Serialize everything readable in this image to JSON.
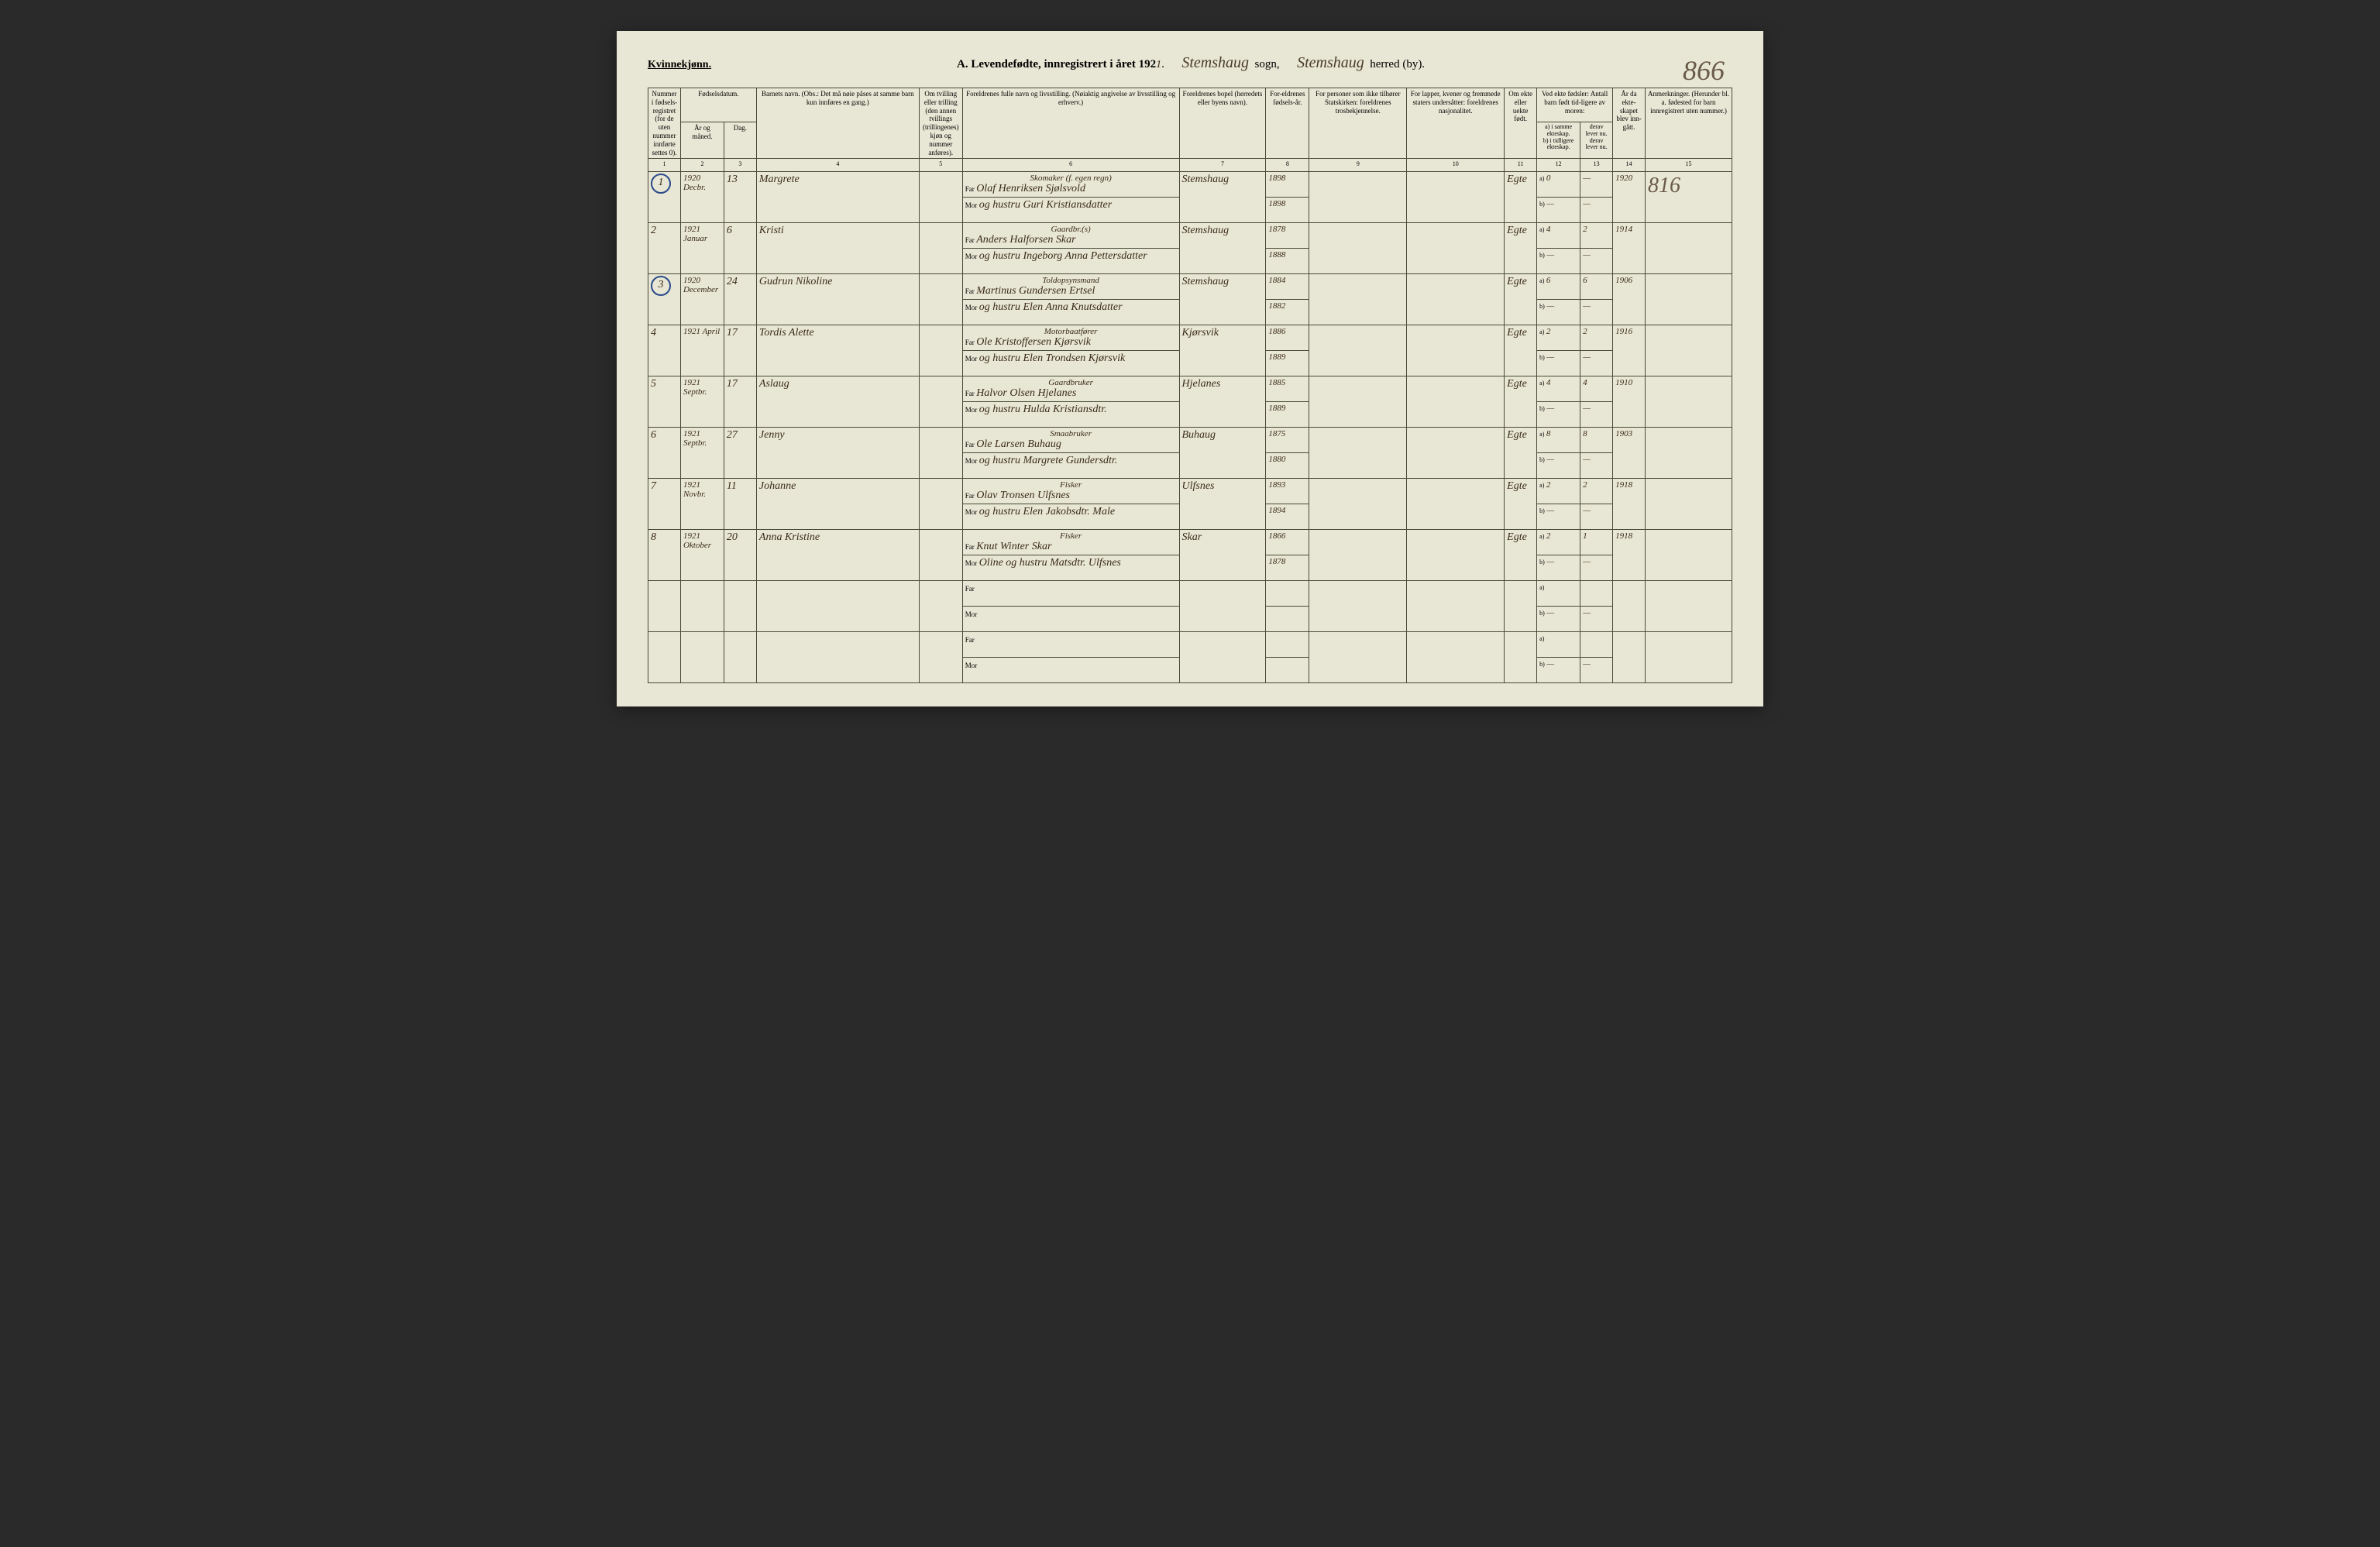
{
  "header": {
    "gender": "Kvinnekjønn.",
    "title_prefix": "A.  Levendefødte, innregistrert i året 192",
    "year_suffix": "1",
    "sogn_label": "sogn,",
    "sogn_value": "Stemshaug",
    "herred_label": "herred (by).",
    "herred_value": "Stemshaug",
    "page_number_big": "866",
    "page_number_side": "816"
  },
  "columns": {
    "c1": "Nummer i fødsels-registret (for de uten nummer innførte settes 0).",
    "c2_top": "Fødselsdatum.",
    "c2a": "År og måned.",
    "c2b": "Dag.",
    "c3": "Barnets navn.\n(Obs.: Det må nøie påses at samme barn kun innføres en gang.)",
    "c4": "Om tvilling eller trilling (den annen tvillings (trillingenes) kjøn og nummer anføres).",
    "c5": "Foreldrenes fulle navn og livsstilling.\n(Nøiaktig angivelse av livsstilling og erhverv.)",
    "c6": "Foreldrenes bopel (herredets eller byens navn).",
    "c7": "For-eldrenes fødsels-år.",
    "c8": "For personer som ikke tilhører Statskirken: foreldrenes trosbekjennelse.",
    "c9": "For lapper, kvener og fremmede staters undersåtter: foreldrenes nasjonalitet.",
    "c10": "Om ekte eller uekte født.",
    "c11_top": "Ved ekte fødsler: Antall barn født tid-ligere av moren:",
    "c11a": "a) i samme ekteskap.",
    "c11b": "b) i tidligere ekteskap.",
    "c12a": "derav lever nu.",
    "c12b": "derav lever nu.",
    "c13": "År da ekte-skapet blev inn-gått.",
    "c14": "Anmerkninger.\n(Herunder bl. a. fødested for barn innregistrert uten nummer.)"
  },
  "col_nums": [
    "1",
    "2",
    "3",
    "4",
    "5",
    "6",
    "7",
    "8",
    "9",
    "10",
    "11",
    "12",
    "13",
    "14",
    "15"
  ],
  "far_label": "Far",
  "mor_label": "Mor",
  "ab_a": "a)",
  "ab_b": "b)",
  "rows": [
    {
      "num": "1",
      "circled": true,
      "year_month": "1920 Decbr.",
      "day": "13",
      "child": "Margrete",
      "occupation": "Skomaker (f. egen regn)",
      "far": "Olaf Henriksen Sjølsvold",
      "mor": "og hustru Guri Kristiansdatter",
      "place": "Stemshaug",
      "far_yr": "1898",
      "mor_yr": "1898",
      "ekte": "Egte",
      "a": "0",
      "a2": "—",
      "wed": "1920",
      "notes": "816"
    },
    {
      "num": "2",
      "circled": false,
      "year_month": "1921 Januar",
      "day": "6",
      "child": "Kristi",
      "occupation": "Gaardbr.(s)",
      "far": "Anders Halforsen Skar",
      "mor": "og hustru Ingeborg Anna Pettersdatter",
      "place": "Stemshaug",
      "far_yr": "1878",
      "mor_yr": "1888",
      "ekte": "Egte",
      "a": "4",
      "a2": "2",
      "wed": "1914",
      "notes": ""
    },
    {
      "num": "3",
      "circled": true,
      "year_month": "1920 December",
      "day": "24",
      "child": "Gudrun Nikoline",
      "occupation": "Toldopsynsmand",
      "far": "Martinus Gundersen Ertsel",
      "mor": "og hustru Elen Anna Knutsdatter",
      "place": "Stemshaug",
      "far_yr": "1884",
      "mor_yr": "1882",
      "ekte": "Egte",
      "a": "6",
      "a2": "6",
      "wed": "1906",
      "notes": ""
    },
    {
      "num": "4",
      "circled": false,
      "year_month": "1921 April",
      "day": "17",
      "child": "Tordis Alette",
      "occupation": "Motorbaatfører",
      "far": "Ole Kristoffersen Kjørsvik",
      "mor": "og hustru Elen Trondsen Kjørsvik",
      "place": "Kjørsvik",
      "far_yr": "1886",
      "mor_yr": "1889",
      "ekte": "Egte",
      "a": "2",
      "a2": "2",
      "wed": "1916",
      "notes": ""
    },
    {
      "num": "5",
      "circled": false,
      "year_month": "1921 Septbr.",
      "day": "17",
      "child": "Aslaug",
      "occupation": "Gaardbruker",
      "far": "Halvor Olsen Hjelanes",
      "mor": "og hustru Hulda Kristiansdtr.",
      "place": "Hjelanes",
      "far_yr": "1885",
      "mor_yr": "1889",
      "ekte": "Egte",
      "a": "4",
      "a2": "4",
      "wed": "1910",
      "notes": ""
    },
    {
      "num": "6",
      "circled": false,
      "year_month": "1921 Septbr.",
      "day": "27",
      "child": "Jenny",
      "occupation": "Smaabruker",
      "far": "Ole Larsen Buhaug",
      "mor": "og hustru Margrete Gundersdtr.",
      "place": "Buhaug",
      "far_yr": "1875",
      "mor_yr": "1880",
      "ekte": "Egte",
      "a": "8",
      "a2": "8",
      "wed": "1903",
      "notes": ""
    },
    {
      "num": "7",
      "circled": false,
      "year_month": "1921 Novbr.",
      "day": "11",
      "child": "Johanne",
      "occupation": "Fisker",
      "far": "Olav Tronsen Ulfsnes",
      "mor": "og hustru Elen Jakobsdtr. Male",
      "place": "Ulfsnes",
      "far_yr": "1893",
      "mor_yr": "1894",
      "ekte": "Egte",
      "a": "2",
      "a2": "2",
      "wed": "1918",
      "notes": ""
    },
    {
      "num": "8",
      "circled": false,
      "year_month": "1921 Oktober",
      "day": "20",
      "child": "Anna Kristine",
      "occupation": "Fisker",
      "far": "Knut Winter Skar",
      "mor": "Oline og hustru Matsdtr. Ulfsnes",
      "place": "Skar",
      "far_yr": "1866",
      "mor_yr": "1878",
      "ekte": "Egte",
      "a": "2",
      "a2": "1",
      "wed": "1918",
      "notes": ""
    },
    {
      "num": "",
      "circled": false,
      "year_month": "",
      "day": "",
      "child": "",
      "occupation": "",
      "far": "",
      "mor": "",
      "place": "",
      "far_yr": "",
      "mor_yr": "",
      "ekte": "",
      "a": "",
      "a2": "",
      "wed": "",
      "notes": ""
    },
    {
      "num": "",
      "circled": false,
      "year_month": "",
      "day": "",
      "child": "",
      "occupation": "",
      "far": "",
      "mor": "",
      "place": "",
      "far_yr": "",
      "mor_yr": "",
      "ekte": "",
      "a": "",
      "a2": "",
      "wed": "",
      "notes": ""
    }
  ]
}
